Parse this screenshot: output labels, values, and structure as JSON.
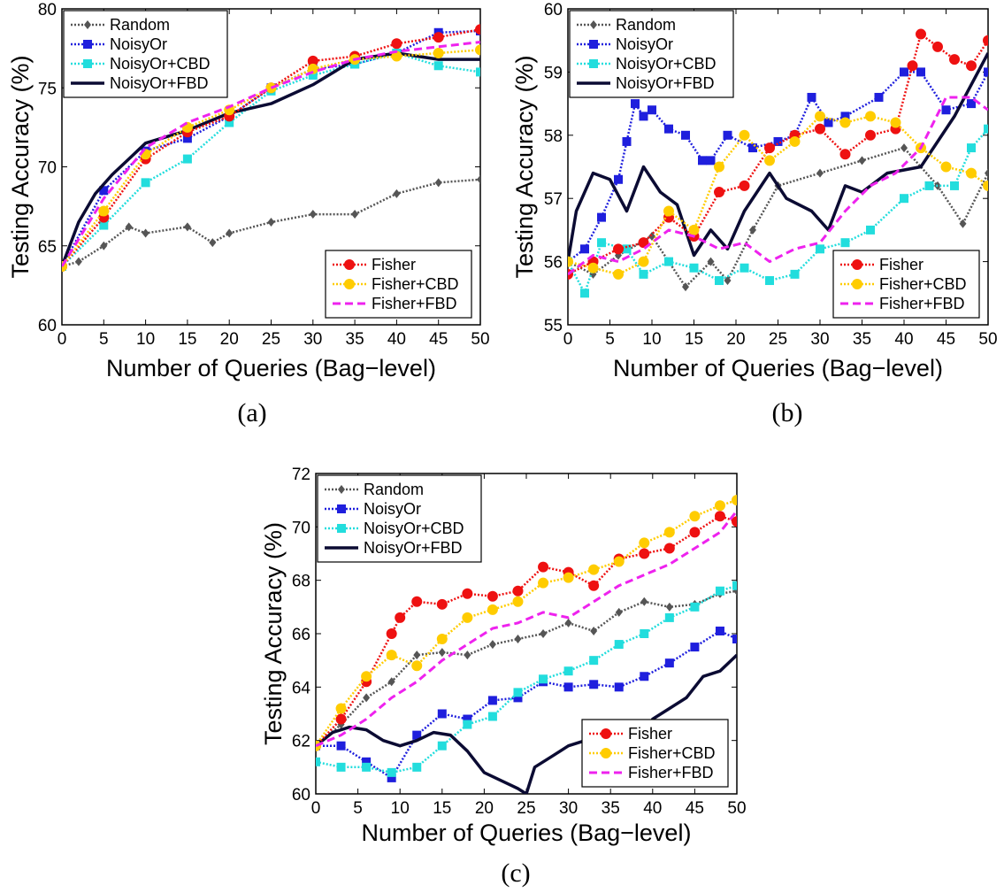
{
  "chart_data": [
    {
      "type": "line",
      "caption": "(a)",
      "xlabel": "Number of Queries (Bag−level)",
      "ylabel": "Testing Accuracy (%)",
      "xlim": [
        0,
        50
      ],
      "ylim": [
        60,
        80
      ],
      "xticks": [
        "0",
        "5",
        "10",
        "15",
        "20",
        "25",
        "30",
        "35",
        "40",
        "45",
        "50"
      ],
      "yticks": [
        "60",
        "65",
        "70",
        "75",
        "80"
      ],
      "legends": [
        {
          "placement": "top-left",
          "entries": [
            "Random",
            "NoisyOr",
            "NoisyOr+CBD",
            "NoisyOr+FBD"
          ]
        },
        {
          "placement": "bottom-right",
          "entries": [
            "Fisher",
            "Fisher+CBD",
            "Fisher+FBD"
          ]
        }
      ],
      "series": [
        {
          "name": "Random",
          "color": "#555555",
          "style": "dotted",
          "marker": "diamond",
          "x": [
            0,
            2,
            5,
            8,
            10,
            15,
            18,
            20,
            25,
            30,
            35,
            40,
            45,
            50
          ],
          "y": [
            63.7,
            64.0,
            65.0,
            66.2,
            65.8,
            66.2,
            65.2,
            65.8,
            66.5,
            67.0,
            67.0,
            68.3,
            69.0,
            69.2
          ]
        },
        {
          "name": "NoisyOr",
          "color": "#1f1fdd",
          "style": "dotted",
          "marker": "square",
          "x": [
            0,
            5,
            10,
            15,
            20,
            25,
            30,
            35,
            40,
            45,
            50
          ],
          "y": [
            63.7,
            68.5,
            71.0,
            71.8,
            73.2,
            75.0,
            76.2,
            76.5,
            77.2,
            78.5,
            78.6
          ]
        },
        {
          "name": "NoisyOr+CBD",
          "color": "#22dddd",
          "style": "dotted",
          "marker": "square",
          "x": [
            0,
            5,
            10,
            15,
            20,
            25,
            30,
            35,
            40,
            45,
            50
          ],
          "y": [
            63.7,
            66.3,
            69.0,
            70.5,
            72.8,
            74.8,
            75.8,
            76.5,
            77.2,
            76.4,
            76.0
          ]
        },
        {
          "name": "NoisyOr+FBD",
          "color": "#0b0b33",
          "style": "solid",
          "marker": "none",
          "x": [
            0,
            2,
            4,
            6,
            8,
            10,
            15,
            20,
            25,
            30,
            35,
            40,
            45,
            50
          ],
          "y": [
            63.7,
            66.5,
            68.3,
            69.5,
            70.5,
            71.5,
            72.3,
            73.4,
            74.0,
            75.2,
            76.8,
            77.2,
            76.8,
            76.8
          ]
        },
        {
          "name": "Fisher",
          "color": "#ee1111",
          "style": "dotted",
          "marker": "circle",
          "x": [
            0,
            5,
            10,
            15,
            20,
            25,
            30,
            35,
            40,
            45,
            50
          ],
          "y": [
            63.7,
            66.8,
            70.5,
            72.2,
            73.2,
            75.0,
            76.7,
            77.0,
            77.8,
            78.2,
            78.7
          ]
        },
        {
          "name": "Fisher+CBD",
          "color": "#ffcc00",
          "style": "dotted",
          "marker": "circle",
          "x": [
            0,
            5,
            10,
            15,
            20,
            25,
            30,
            35,
            40,
            45,
            50
          ],
          "y": [
            63.7,
            67.2,
            70.8,
            72.5,
            73.6,
            75.0,
            76.2,
            76.8,
            77.0,
            77.2,
            77.4
          ]
        },
        {
          "name": "Fisher+FBD",
          "color": "#ee22ee",
          "style": "dashed",
          "marker": "none",
          "x": [
            0,
            5,
            10,
            15,
            20,
            25,
            30,
            35,
            40,
            45,
            50
          ],
          "y": [
            63.7,
            68.0,
            71.2,
            72.8,
            73.8,
            75.0,
            76.0,
            76.8,
            77.3,
            77.6,
            77.9
          ]
        }
      ]
    },
    {
      "type": "line",
      "caption": "(b)",
      "xlabel": "Number of Queries (Bag−level)",
      "ylabel": "Testing Accuracy (%)",
      "xlim": [
        0,
        50
      ],
      "ylim": [
        55,
        60
      ],
      "xticks": [
        "0",
        "5",
        "10",
        "15",
        "20",
        "25",
        "30",
        "35",
        "40",
        "45",
        "50"
      ],
      "yticks": [
        "55",
        "56",
        "57",
        "58",
        "59",
        "60"
      ],
      "legends": [
        {
          "placement": "top-left",
          "entries": [
            "Random",
            "NoisyOr",
            "NoisyOr+CBD",
            "NoisyOr+FBD"
          ]
        },
        {
          "placement": "bottom-right",
          "entries": [
            "Fisher",
            "Fisher+CBD",
            "Fisher+FBD"
          ]
        }
      ],
      "series": [
        {
          "name": "Random",
          "color": "#555555",
          "style": "dotted",
          "marker": "diamond",
          "x": [
            0,
            3,
            6,
            10,
            14,
            17,
            19,
            22,
            25,
            30,
            35,
            40,
            44,
            47,
            50
          ],
          "y": [
            56.0,
            55.8,
            56.1,
            56.4,
            55.6,
            56.0,
            55.7,
            56.5,
            57.2,
            57.4,
            57.6,
            57.8,
            57.2,
            56.6,
            57.4
          ]
        },
        {
          "name": "NoisyOr",
          "color": "#1f1fdd",
          "style": "dotted",
          "marker": "square",
          "x": [
            0,
            2,
            4,
            6,
            7,
            8,
            9,
            10,
            12,
            14,
            16,
            17,
            19,
            22,
            25,
            27,
            29,
            31,
            33,
            37,
            40,
            42,
            45,
            48,
            50
          ],
          "y": [
            56.0,
            56.2,
            56.7,
            57.3,
            57.9,
            58.5,
            58.3,
            58.4,
            58.1,
            58.0,
            57.6,
            57.6,
            58.0,
            57.8,
            57.9,
            58.0,
            58.6,
            58.2,
            58.3,
            58.6,
            59.0,
            59.0,
            58.4,
            58.5,
            59.0
          ]
        },
        {
          "name": "NoisyOr+CBD",
          "color": "#22dddd",
          "style": "dotted",
          "marker": "square",
          "x": [
            0,
            2,
            4,
            7,
            9,
            12,
            15,
            18,
            21,
            24,
            27,
            30,
            33,
            36,
            40,
            43,
            46,
            48,
            50
          ],
          "y": [
            56.0,
            55.5,
            56.3,
            56.2,
            55.8,
            56.0,
            55.9,
            55.7,
            55.9,
            55.7,
            55.8,
            56.2,
            56.3,
            56.5,
            57.0,
            57.2,
            57.2,
            57.8,
            58.1
          ]
        },
        {
          "name": "NoisyOr+FBD",
          "color": "#0b0b33",
          "style": "solid",
          "marker": "none",
          "x": [
            0,
            1,
            3,
            5,
            7,
            9,
            11,
            13,
            15,
            17,
            19,
            21,
            24,
            26,
            29,
            31,
            33,
            35,
            38,
            42,
            46,
            50
          ],
          "y": [
            56.0,
            56.8,
            57.4,
            57.3,
            56.8,
            57.5,
            57.1,
            56.9,
            56.1,
            56.5,
            56.2,
            56.8,
            57.4,
            57.0,
            56.8,
            56.5,
            57.2,
            57.1,
            57.4,
            57.5,
            58.3,
            59.3
          ]
        },
        {
          "name": "Fisher",
          "color": "#ee1111",
          "style": "dotted",
          "marker": "circle",
          "x": [
            0,
            3,
            6,
            9,
            12,
            15,
            18,
            21,
            24,
            27,
            30,
            33,
            36,
            39,
            41,
            42,
            44,
            46,
            48,
            50
          ],
          "y": [
            55.8,
            56.0,
            56.2,
            56.3,
            56.7,
            56.4,
            57.1,
            57.2,
            57.8,
            58.0,
            58.1,
            57.7,
            58.0,
            58.1,
            59.1,
            59.6,
            59.4,
            59.2,
            59.1,
            59.5
          ]
        },
        {
          "name": "Fisher+CBD",
          "color": "#ffcc00",
          "style": "dotted",
          "marker": "circle",
          "x": [
            0,
            3,
            6,
            9,
            12,
            15,
            18,
            21,
            24,
            27,
            30,
            33,
            36,
            39,
            42,
            45,
            48,
            50
          ],
          "y": [
            56.0,
            55.9,
            55.8,
            56.0,
            56.8,
            56.5,
            57.5,
            58.0,
            57.6,
            57.9,
            58.3,
            58.2,
            58.3,
            58.2,
            57.8,
            57.5,
            57.4,
            57.2
          ]
        },
        {
          "name": "Fisher+FBD",
          "color": "#ee22ee",
          "style": "dashed",
          "marker": "none",
          "x": [
            0,
            3,
            6,
            9,
            12,
            15,
            18,
            21,
            24,
            27,
            30,
            33,
            36,
            39,
            42,
            45,
            48,
            50
          ],
          "y": [
            55.8,
            56.1,
            56.0,
            56.2,
            56.5,
            56.4,
            56.2,
            56.3,
            56.0,
            56.2,
            56.3,
            56.8,
            57.2,
            57.4,
            57.8,
            58.6,
            58.6,
            58.4
          ]
        }
      ]
    },
    {
      "type": "line",
      "caption": "(c)",
      "xlabel": "Number of Queries (Bag−level)",
      "ylabel": "Testing Accuracy (%)",
      "xlim": [
        0,
        50
      ],
      "ylim": [
        60,
        72
      ],
      "xticks": [
        "0",
        "5",
        "10",
        "15",
        "20",
        "25",
        "30",
        "35",
        "40",
        "45",
        "50"
      ],
      "yticks": [
        "60",
        "62",
        "64",
        "66",
        "68",
        "70",
        "72"
      ],
      "legends": [
        {
          "placement": "top-left",
          "entries": [
            "Random",
            "NoisyOr",
            "NoisyOr+CBD",
            "NoisyOr+FBD"
          ]
        },
        {
          "placement": "bottom-right",
          "entries": [
            "Fisher",
            "Fisher+CBD",
            "Fisher+FBD"
          ]
        }
      ],
      "series": [
        {
          "name": "Random",
          "color": "#555555",
          "style": "dotted",
          "marker": "diamond",
          "x": [
            0,
            3,
            6,
            9,
            12,
            15,
            18,
            21,
            24,
            27,
            30,
            33,
            36,
            39,
            42,
            45,
            48,
            50
          ],
          "y": [
            61.8,
            62.6,
            63.6,
            64.2,
            65.2,
            65.3,
            65.2,
            65.6,
            65.8,
            66.0,
            66.4,
            66.1,
            66.8,
            67.2,
            67.0,
            67.1,
            67.5,
            67.6
          ]
        },
        {
          "name": "NoisyOr",
          "color": "#1f1fdd",
          "style": "dotted",
          "marker": "square",
          "x": [
            0,
            3,
            6,
            9,
            12,
            15,
            18,
            21,
            24,
            27,
            30,
            33,
            36,
            39,
            42,
            45,
            48,
            50
          ],
          "y": [
            61.8,
            61.8,
            61.2,
            60.6,
            62.2,
            63.0,
            62.8,
            63.5,
            63.6,
            64.2,
            64.0,
            64.1,
            64.0,
            64.4,
            64.9,
            65.5,
            66.1,
            65.8
          ]
        },
        {
          "name": "NoisyOr+CBD",
          "color": "#22dddd",
          "style": "dotted",
          "marker": "square",
          "x": [
            0,
            3,
            6,
            9,
            12,
            15,
            18,
            21,
            24,
            27,
            30,
            33,
            36,
            39,
            42,
            45,
            48,
            50
          ],
          "y": [
            61.2,
            61.0,
            61.0,
            60.8,
            61.0,
            61.8,
            62.6,
            62.9,
            63.8,
            64.3,
            64.6,
            65.0,
            65.6,
            66.0,
            66.6,
            67.0,
            67.6,
            67.8
          ]
        },
        {
          "name": "NoisyOr+FBD",
          "color": "#0b0b33",
          "style": "solid",
          "marker": "none",
          "x": [
            0,
            2,
            4,
            6,
            8,
            10,
            12,
            14,
            16,
            18,
            20,
            22,
            24,
            25,
            26,
            28,
            30,
            32,
            34,
            36,
            38,
            40,
            42,
            44,
            46,
            48,
            50
          ],
          "y": [
            61.8,
            62.3,
            62.5,
            62.4,
            62.0,
            61.8,
            62.0,
            62.3,
            62.2,
            61.6,
            60.8,
            60.5,
            60.2,
            60.0,
            61.0,
            61.4,
            61.8,
            62.0,
            61.8,
            61.4,
            61.2,
            62.8,
            63.2,
            63.6,
            64.4,
            64.6,
            65.2
          ]
        },
        {
          "name": "Fisher",
          "color": "#ee1111",
          "style": "dotted",
          "marker": "circle",
          "x": [
            0,
            3,
            6,
            9,
            10,
            12,
            15,
            18,
            21,
            24,
            27,
            30,
            33,
            36,
            39,
            42,
            45,
            48,
            50
          ],
          "y": [
            61.8,
            62.8,
            64.2,
            66.0,
            66.6,
            67.2,
            67.1,
            67.5,
            67.4,
            67.6,
            68.5,
            68.3,
            67.8,
            68.8,
            69.0,
            69.2,
            69.8,
            70.4,
            70.2
          ]
        },
        {
          "name": "Fisher+CBD",
          "color": "#ffcc00",
          "style": "dotted",
          "marker": "circle",
          "x": [
            0,
            3,
            6,
            9,
            12,
            15,
            18,
            21,
            24,
            27,
            30,
            33,
            36,
            39,
            42,
            45,
            48,
            50
          ],
          "y": [
            61.8,
            63.2,
            64.4,
            65.2,
            64.8,
            65.8,
            66.6,
            66.9,
            67.2,
            67.9,
            68.1,
            68.4,
            68.7,
            69.4,
            69.8,
            70.4,
            70.8,
            71.0
          ]
        },
        {
          "name": "Fisher+FBD",
          "color": "#ee22ee",
          "style": "dashed",
          "marker": "none",
          "x": [
            0,
            3,
            6,
            9,
            12,
            15,
            18,
            21,
            24,
            27,
            30,
            33,
            36,
            39,
            42,
            45,
            48,
            50
          ],
          "y": [
            61.8,
            62.2,
            62.8,
            63.6,
            64.2,
            65.0,
            65.6,
            66.2,
            66.4,
            66.8,
            66.6,
            67.2,
            67.8,
            68.2,
            68.6,
            69.2,
            69.8,
            70.6
          ]
        }
      ]
    }
  ]
}
